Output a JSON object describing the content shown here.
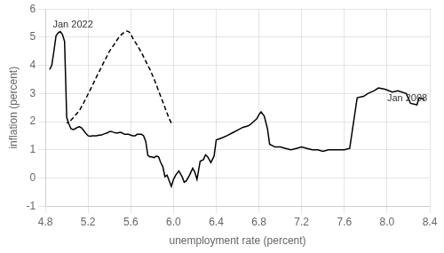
{
  "chart_data": {
    "type": "line",
    "xlabel": "unemployment rate (percent)",
    "ylabel": "inflation (percent)",
    "xlim": [
      4.8,
      8.4
    ],
    "ylim": [
      -1,
      6
    ],
    "xticks": [
      4.8,
      5.2,
      5.6,
      {
        "value": 6.0,
        "label": "6.0"
      },
      6.4,
      6.8,
      7.2,
      7.6,
      {
        "value": 8.0,
        "label": "8.0"
      },
      8.4
    ],
    "yticks": [
      -1,
      0,
      1,
      2,
      3,
      4,
      5,
      6
    ],
    "grid": true,
    "annotations": [
      {
        "text": "Jan 2008",
        "x": 8.0,
        "y": 2.82
      },
      {
        "text": "Jan 2022",
        "x": 4.87,
        "y": 5.45
      }
    ],
    "series": [
      {
        "color": "#000000",
        "line_style": "solid",
        "x": [
          8.35,
          8.3,
          8.28,
          8.22,
          8.18,
          8.1,
          8.05,
          7.98,
          7.92,
          7.88,
          7.82,
          7.78,
          7.72,
          7.65,
          7.6,
          7.55,
          7.5,
          7.45,
          7.4,
          7.35,
          7.3,
          7.25,
          7.2,
          7.15,
          7.1,
          7.05,
          7.0,
          6.95,
          6.9,
          6.88,
          6.85,
          6.82,
          6.8,
          6.78,
          6.75,
          6.72,
          6.7,
          6.65,
          6.6,
          6.55,
          6.5,
          6.45,
          6.42,
          6.4,
          6.38,
          6.35,
          6.32,
          6.3,
          6.28,
          6.25,
          6.22,
          6.2,
          6.18,
          6.15,
          6.12,
          6.1,
          6.08,
          6.05,
          6.02,
          6.0,
          5.98,
          5.96,
          5.94,
          5.92,
          5.9,
          5.88,
          5.86,
          5.84,
          5.82,
          5.8,
          5.78,
          5.76,
          5.74,
          5.72,
          5.7,
          5.68,
          5.66,
          5.64,
          5.62,
          5.6,
          5.58,
          5.56,
          5.54,
          5.52,
          5.5,
          5.48,
          5.46,
          5.44,
          5.42,
          5.4,
          5.38,
          5.36,
          5.34,
          5.32,
          5.3,
          5.28,
          5.26,
          5.24,
          5.22,
          5.2,
          5.18,
          5.16,
          5.14,
          5.12,
          5.1,
          5.08,
          5.06,
          5.04,
          5.02,
          5.0,
          4.98,
          4.96,
          4.94,
          4.92,
          4.9,
          4.88,
          4.86,
          4.84
        ],
        "values": [
          2.8,
          2.85,
          2.6,
          2.65,
          3.0,
          3.1,
          3.05,
          3.15,
          3.2,
          3.1,
          3.0,
          2.9,
          2.85,
          1.05,
          1.0,
          1.0,
          1.0,
          1.0,
          0.95,
          1.0,
          1.0,
          1.05,
          1.1,
          1.05,
          1.0,
          1.05,
          1.1,
          1.1,
          1.2,
          1.75,
          2.2,
          2.35,
          2.25,
          2.1,
          2.0,
          1.9,
          1.85,
          1.8,
          1.7,
          1.6,
          1.5,
          1.42,
          1.38,
          1.35,
          0.78,
          0.55,
          0.75,
          0.82,
          0.65,
          0.6,
          -0.05,
          0.2,
          0.35,
          0.1,
          -0.1,
          -0.15,
          0.05,
          0.25,
          0.1,
          -0.05,
          -0.3,
          -0.1,
          0.1,
          0.05,
          0.4,
          0.55,
          0.75,
          0.78,
          0.72,
          0.75,
          0.75,
          0.8,
          1.3,
          1.5,
          1.55,
          1.55,
          1.55,
          1.5,
          1.5,
          1.52,
          1.55,
          1.55,
          1.55,
          1.6,
          1.62,
          1.6,
          1.6,
          1.62,
          1.65,
          1.65,
          1.6,
          1.58,
          1.55,
          1.52,
          1.52,
          1.5,
          1.5,
          1.5,
          1.48,
          1.5,
          1.58,
          1.68,
          1.78,
          1.82,
          1.8,
          1.75,
          1.72,
          1.75,
          1.92,
          2.15,
          4.85,
          5.1,
          5.2,
          5.15,
          5.05,
          4.5,
          4.0,
          3.85
        ]
      },
      {
        "color": "#000000",
        "line_style": "dashed",
        "x": [
          5.98,
          5.96,
          5.94,
          5.9,
          5.86,
          5.82,
          5.78,
          5.74,
          5.7,
          5.66,
          5.62,
          5.6,
          5.58,
          5.56,
          5.54,
          5.52,
          5.5,
          5.48,
          5.44,
          5.4,
          5.36,
          5.32,
          5.28,
          5.24,
          5.2,
          5.16,
          5.12,
          5.08,
          5.04,
          5.0
        ],
        "values": [
          1.95,
          2.1,
          2.3,
          2.7,
          3.1,
          3.5,
          3.85,
          4.15,
          4.45,
          4.72,
          4.95,
          5.12,
          5.2,
          5.22,
          5.18,
          5.12,
          5.05,
          4.95,
          4.72,
          4.5,
          4.2,
          3.9,
          3.6,
          3.28,
          2.98,
          2.68,
          2.4,
          2.22,
          2.05,
          1.95
        ]
      }
    ]
  }
}
